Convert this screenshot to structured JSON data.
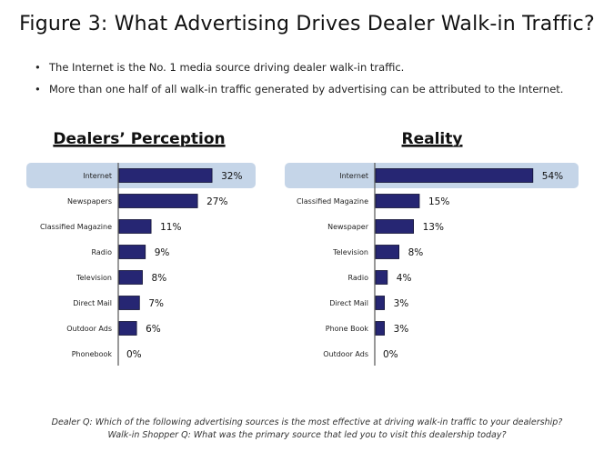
{
  "title": "Figure 3: What Advertising Drives Dealer Walk-in Traffic?",
  "bullets": [
    "The Internet is the No. 1 media source driving dealer walk-in traffic.",
    "More than one half of all walk-in traffic generated by advertising can be attributed to the Internet."
  ],
  "bullet_symbol": "•",
  "colors": {
    "bar": "#262673",
    "highlight": "#c5d5e8",
    "axis": "#555555"
  },
  "chart_data": [
    {
      "type": "bar",
      "orientation": "horizontal",
      "title": "Dealers' Perception",
      "title_display": "Dealers’ Perception",
      "highlighted_category": "Internet",
      "categories": [
        "Internet",
        "Newspapers",
        "Classified Magazine",
        "Radio",
        "Television",
        "Direct Mail",
        "Outdoor Ads",
        "Phonebook"
      ],
      "values": [
        32,
        27,
        11,
        9,
        8,
        7,
        6,
        0
      ],
      "labels": [
        "32%",
        "27%",
        "11%",
        "9%",
        "8%",
        "7%",
        "6%",
        "0%"
      ],
      "unit": "%"
    },
    {
      "type": "bar",
      "orientation": "horizontal",
      "title": "Reality",
      "title_display": "Reality",
      "highlighted_category": "Internet",
      "categories": [
        "Internet",
        "Classified Magazine",
        "Newspaper",
        "Television",
        "Radio",
        "Direct Mail",
        "Phone Book",
        "Outdoor Ads"
      ],
      "values": [
        54,
        15,
        13,
        8,
        4,
        3,
        3,
        0
      ],
      "labels": [
        "54%",
        "15%",
        "13%",
        "8%",
        "4%",
        "3%",
        "3%",
        "0%"
      ],
      "unit": "%"
    }
  ],
  "footer": {
    "line1": "Dealer Q: Which of the following advertising sources is the most effective at driving walk-in traffic to your dealership?",
    "line2": "Walk-in Shopper Q: What was the primary source that led you to visit this dealership today?"
  }
}
